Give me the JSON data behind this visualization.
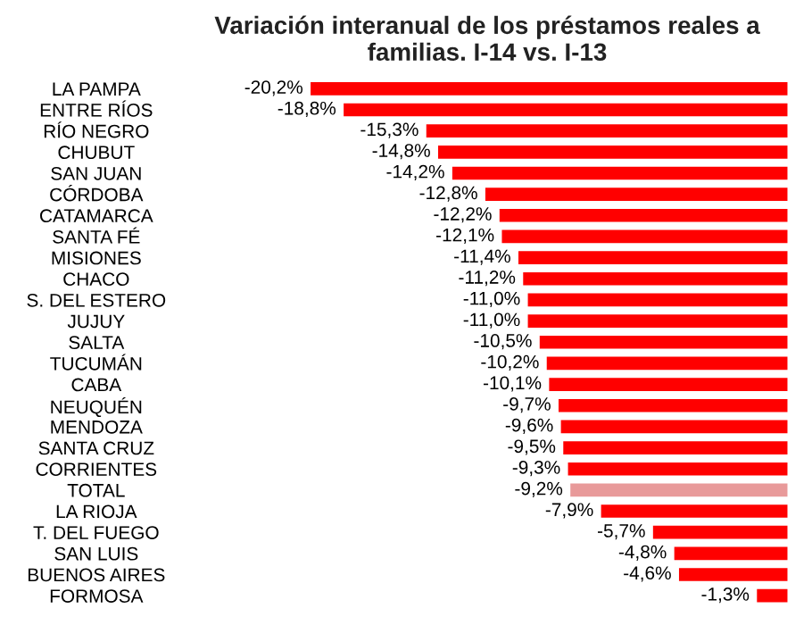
{
  "chart_data": {
    "type": "bar",
    "orientation": "horizontal",
    "title": "Variación interanual de los préstamos reales a familias. I-14 vs. I-13",
    "categories": [
      "LA PAMPA",
      "ENTRE RÍOS",
      "RÍO NEGRO",
      "CHUBUT",
      "SAN JUAN",
      "CÓRDOBA",
      "CATAMARCA",
      "SANTA FÉ",
      "MISIONES",
      "CHACO",
      "S. DEL ESTERO",
      "JUJUY",
      "SALTA",
      "TUCUMÁN",
      "CABA",
      "NEUQUÉN",
      "MENDOZA",
      "SANTA CRUZ",
      "CORRIENTES",
      "TOTAL",
      "LA RIOJA",
      "T. DEL FUEGO",
      "SAN LUIS",
      "BUENOS AIRES",
      "FORMOSA"
    ],
    "values": [
      -20.2,
      -18.8,
      -15.3,
      -14.8,
      -14.2,
      -12.8,
      -12.2,
      -12.1,
      -11.4,
      -11.2,
      -11.0,
      -11.0,
      -10.5,
      -10.2,
      -10.1,
      -9.7,
      -9.6,
      -9.5,
      -9.3,
      -9.2,
      -7.9,
      -5.7,
      -4.8,
      -4.6,
      -1.3
    ],
    "value_labels": [
      "-20,2%",
      "-18,8%",
      "-15,3%",
      "-14,8%",
      "-14,2%",
      "-12,8%",
      "-12,2%",
      "-12,1%",
      "-11,4%",
      "-11,2%",
      "-11,0%",
      "-11,0%",
      "-10,5%",
      "-10,2%",
      "-10,1%",
      "-9,7%",
      "-9,6%",
      "-9,5%",
      "-9,3%",
      "-9,2%",
      "-7,9%",
      "-5,7%",
      "-4,8%",
      "-4,6%",
      "-1,3%"
    ],
    "colors": [
      "#ff0000",
      "#ff0000",
      "#ff0000",
      "#ff0000",
      "#ff0000",
      "#ff0000",
      "#ff0000",
      "#ff0000",
      "#ff0000",
      "#ff0000",
      "#ff0000",
      "#ff0000",
      "#ff0000",
      "#ff0000",
      "#ff0000",
      "#ff0000",
      "#ff0000",
      "#ff0000",
      "#ff0000",
      "#e89a9a",
      "#ff0000",
      "#ff0000",
      "#ff0000",
      "#ff0000",
      "#ff0000"
    ],
    "grid": false,
    "legend": false
  }
}
